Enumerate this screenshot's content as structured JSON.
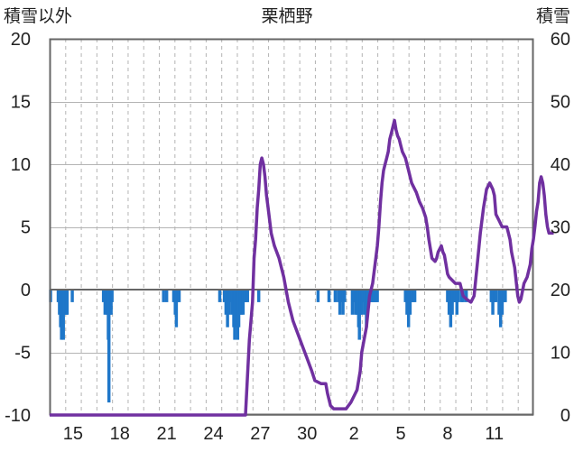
{
  "chart_data": {
    "type": "bar+line",
    "title": "栗栖野",
    "y_left_label": "積雪以外",
    "y_right_label": "積雪",
    "y_left_range": [
      -10,
      20
    ],
    "y_right_range": [
      0,
      60
    ],
    "y_left_ticks": [
      "20",
      "15",
      "10",
      "5",
      "0",
      "-5",
      "-10"
    ],
    "y_right_ticks": [
      "60",
      "50",
      "40",
      "30",
      "20",
      "10",
      "0"
    ],
    "x_ticks": [
      "15",
      "18",
      "21",
      "24",
      "27",
      "30",
      "2",
      "5",
      "8",
      "11"
    ],
    "x_domain_days": 31,
    "x_tick_days": [
      1.5,
      4.5,
      7.5,
      10.5,
      13.5,
      16.5,
      19.5,
      22.5,
      25.5,
      28.5
    ],
    "grid": "dashed vertical at day boundaries, solid horizontal at major y ticks",
    "colors": {
      "bars": "#1f77c9",
      "line": "#7030a0",
      "axis": "#666666",
      "grid": "#b4b4b4"
    },
    "series": [
      {
        "kind": "bar",
        "axis": "left",
        "points": [
          [
            0.06,
            -1.0
          ],
          [
            0.55,
            -1.0
          ],
          [
            0.63,
            -2.0
          ],
          [
            0.7,
            -3.0
          ],
          [
            0.76,
            -4.0
          ],
          [
            0.82,
            -3.0
          ],
          [
            0.88,
            -4.0
          ],
          [
            0.94,
            -2.0
          ],
          [
            1.0,
            -1.0
          ],
          [
            1.06,
            -2.0
          ],
          [
            1.12,
            -2.0
          ],
          [
            1.45,
            -1.0
          ],
          [
            3.45,
            -1.0
          ],
          [
            3.55,
            -2.0
          ],
          [
            3.62,
            -1.0
          ],
          [
            3.68,
            -2.0
          ],
          [
            3.76,
            -4.0
          ],
          [
            3.8,
            -9.0
          ],
          [
            3.88,
            -2.0
          ],
          [
            3.94,
            -2.0
          ],
          [
            4.0,
            -1.0
          ],
          [
            7.3,
            -1.0
          ],
          [
            7.5,
            -1.0
          ],
          [
            7.95,
            -1.0
          ],
          [
            8.05,
            -2.0
          ],
          [
            8.12,
            -3.0
          ],
          [
            8.2,
            -1.0
          ],
          [
            8.3,
            -1.0
          ],
          [
            10.9,
            -1.0
          ],
          [
            11.2,
            -1.0
          ],
          [
            11.3,
            -2.0
          ],
          [
            11.4,
            -3.0
          ],
          [
            11.5,
            -2.0
          ],
          [
            11.6,
            -1.0
          ],
          [
            11.7,
            -2.0
          ],
          [
            11.8,
            -3.0
          ],
          [
            11.86,
            -4.0
          ],
          [
            11.9,
            -3.0
          ],
          [
            11.96,
            -3.0
          ],
          [
            12.05,
            -4.0
          ],
          [
            12.12,
            -3.0
          ],
          [
            12.2,
            -2.0
          ],
          [
            12.3,
            -2.0
          ],
          [
            12.4,
            -2.0
          ],
          [
            12.5,
            -1.0
          ],
          [
            12.6,
            -1.0
          ],
          [
            12.68,
            -1.0
          ],
          [
            13.4,
            -1.0
          ],
          [
            17.2,
            -1.0
          ],
          [
            17.9,
            -1.0
          ],
          [
            18.3,
            -1.0
          ],
          [
            18.5,
            -1.0
          ],
          [
            18.6,
            -2.0
          ],
          [
            18.7,
            -1.0
          ],
          [
            18.8,
            -2.0
          ],
          [
            18.9,
            -1.0
          ],
          [
            19.4,
            -2.0
          ],
          [
            19.5,
            -1.0
          ],
          [
            19.6,
            -2.0
          ],
          [
            19.7,
            -2.0
          ],
          [
            19.8,
            -3.0
          ],
          [
            19.85,
            -4.0
          ],
          [
            19.9,
            -2.0
          ],
          [
            20.0,
            -2.0
          ],
          [
            20.1,
            -1.0
          ],
          [
            20.2,
            -2.0
          ],
          [
            20.3,
            -3.0
          ],
          [
            20.4,
            -1.0
          ],
          [
            20.5,
            -1.0
          ],
          [
            20.6,
            -1.0
          ],
          [
            20.7,
            -1.0
          ],
          [
            20.8,
            -1.0
          ],
          [
            20.9,
            -1.0
          ],
          [
            21.0,
            -1.0
          ],
          [
            22.8,
            -1.0
          ],
          [
            22.9,
            -2.0
          ],
          [
            23.0,
            -3.0
          ],
          [
            23.1,
            -2.0
          ],
          [
            23.2,
            -1.0
          ],
          [
            23.3,
            -1.0
          ],
          [
            23.4,
            -1.0
          ],
          [
            25.5,
            -1.0
          ],
          [
            25.6,
            -2.0
          ],
          [
            25.7,
            -3.0
          ],
          [
            25.8,
            -2.0
          ],
          [
            25.9,
            -1.0
          ],
          [
            26.0,
            -1.0
          ],
          [
            26.1,
            -2.0
          ],
          [
            26.2,
            -1.0
          ],
          [
            26.4,
            -1.0
          ],
          [
            26.5,
            -1.0
          ],
          [
            26.7,
            -1.0
          ],
          [
            28.3,
            -1.0
          ],
          [
            28.4,
            -2.0
          ],
          [
            28.5,
            -1.0
          ],
          [
            28.6,
            -1.0
          ],
          [
            28.8,
            -2.0
          ],
          [
            28.9,
            -3.0
          ],
          [
            29.0,
            -2.0
          ],
          [
            29.1,
            -1.0
          ],
          [
            29.2,
            -1.0
          ]
        ]
      },
      {
        "kind": "line",
        "axis": "right",
        "points": [
          [
            0.0,
            0.0
          ],
          [
            12.0,
            0.0
          ],
          [
            12.55,
            0.0
          ],
          [
            12.8,
            12.0
          ],
          [
            13.0,
            18.0
          ],
          [
            13.1,
            25.0
          ],
          [
            13.2,
            28.0
          ],
          [
            13.3,
            33.0
          ],
          [
            13.4,
            36.0
          ],
          [
            13.5,
            40.0
          ],
          [
            13.6,
            41.0
          ],
          [
            13.7,
            40.0
          ],
          [
            13.8,
            38.0
          ],
          [
            13.9,
            35.0
          ],
          [
            14.0,
            33.0
          ],
          [
            14.2,
            29.0
          ],
          [
            14.4,
            27.0
          ],
          [
            14.7,
            25.0
          ],
          [
            15.0,
            22.0
          ],
          [
            15.3,
            18.0
          ],
          [
            15.6,
            15.0
          ],
          [
            15.9,
            13.0
          ],
          [
            16.2,
            11.0
          ],
          [
            16.5,
            9.0
          ],
          [
            16.8,
            7.0
          ],
          [
            17.0,
            5.5
          ],
          [
            17.4,
            5.0
          ],
          [
            17.7,
            5.0
          ],
          [
            17.8,
            3.5
          ],
          [
            18.0,
            1.5
          ],
          [
            18.2,
            1.0
          ],
          [
            18.5,
            1.0
          ],
          [
            19.0,
            1.0
          ],
          [
            19.3,
            2.0
          ],
          [
            19.5,
            3.0
          ],
          [
            19.7,
            4.0
          ],
          [
            19.9,
            7.0
          ],
          [
            20.0,
            10.0
          ],
          [
            20.3,
            14.0
          ],
          [
            20.5,
            19.0
          ],
          [
            20.7,
            21.0
          ],
          [
            20.9,
            25.0
          ],
          [
            21.0,
            27.0
          ],
          [
            21.1,
            30.0
          ],
          [
            21.2,
            34.0
          ],
          [
            21.3,
            37.0
          ],
          [
            21.4,
            39.0
          ],
          [
            21.5,
            40.0
          ],
          [
            21.6,
            41.0
          ],
          [
            21.7,
            42.0
          ],
          [
            21.8,
            44.0
          ],
          [
            21.9,
            45.0
          ],
          [
            22.0,
            46.0
          ],
          [
            22.1,
            47.0
          ],
          [
            22.2,
            45.5
          ],
          [
            22.3,
            44.5
          ],
          [
            22.4,
            44.0
          ],
          [
            22.5,
            43.0
          ],
          [
            22.6,
            42.0
          ],
          [
            22.8,
            41.0
          ],
          [
            23.0,
            39.0
          ],
          [
            23.2,
            37.0
          ],
          [
            23.5,
            35.5
          ],
          [
            23.7,
            34.0
          ],
          [
            23.9,
            33.0
          ],
          [
            24.1,
            31.5
          ],
          [
            24.2,
            30.0
          ],
          [
            24.3,
            28.0
          ],
          [
            24.5,
            25.0
          ],
          [
            24.7,
            24.5
          ],
          [
            24.8,
            25.0
          ],
          [
            24.9,
            26.0
          ],
          [
            25.0,
            26.5
          ],
          [
            25.1,
            27.0
          ],
          [
            25.2,
            26.0
          ],
          [
            25.3,
            25.5
          ],
          [
            25.4,
            24.0
          ],
          [
            25.5,
            22.5
          ],
          [
            25.6,
            22.0
          ],
          [
            26.0,
            21.0
          ],
          [
            26.3,
            21.0
          ],
          [
            26.5,
            19.0
          ],
          [
            26.7,
            18.5
          ],
          [
            27.0,
            18.0
          ],
          [
            27.2,
            19.0
          ],
          [
            27.4,
            24.0
          ],
          [
            27.6,
            29.0
          ],
          [
            27.8,
            33.0
          ],
          [
            28.0,
            36.0
          ],
          [
            28.2,
            37.0
          ],
          [
            28.4,
            36.0
          ],
          [
            28.5,
            35.0
          ],
          [
            28.6,
            32.0
          ],
          [
            28.8,
            31.0
          ],
          [
            29.0,
            30.0
          ],
          [
            29.3,
            30.0
          ],
          [
            29.5,
            28.0
          ],
          [
            29.6,
            26.0
          ],
          [
            29.8,
            23.5
          ],
          [
            30.0,
            19.0
          ],
          [
            30.1,
            18.0
          ],
          [
            30.2,
            18.5
          ],
          [
            30.4,
            21.0
          ],
          [
            30.6,
            22.0
          ],
          [
            30.8,
            24.0
          ],
          [
            30.9,
            26.5
          ],
          [
            31.0,
            28.0
          ],
          [
            31.1,
            30.0
          ],
          [
            31.2,
            32.5
          ],
          [
            31.3,
            34.0
          ],
          [
            31.4,
            37.0
          ],
          [
            31.5,
            38.0
          ],
          [
            31.6,
            37.0
          ],
          [
            31.7,
            35.0
          ],
          [
            31.8,
            32.0
          ],
          [
            31.9,
            30.0
          ],
          [
            32.0,
            29.0
          ],
          [
            32.3,
            29.0
          ]
        ]
      }
    ]
  }
}
